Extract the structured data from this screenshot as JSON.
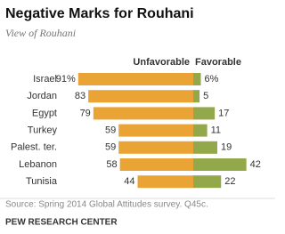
{
  "chart_data": {
    "type": "diverging-bar",
    "title": "Negative Marks for Rouhani",
    "subtitle": "View of Rouhani",
    "categories": [
      "Israel",
      "Jordan",
      "Egypt",
      "Turkey",
      "Palest. ter.",
      "Lebanon",
      "Tunisia"
    ],
    "series": [
      {
        "name": "Unfavorable",
        "color": "#e9a435",
        "values": [
          91,
          83,
          79,
          59,
          59,
          58,
          44
        ],
        "value_labels": [
          "91%",
          "83",
          "79",
          "59",
          "59",
          "58",
          "44"
        ]
      },
      {
        "name": "Favorable",
        "color": "#93a84a",
        "values": [
          6,
          5,
          17,
          11,
          19,
          42,
          22
        ],
        "value_labels": [
          "6%",
          "5",
          "17",
          "11",
          "19",
          "42",
          "22"
        ]
      }
    ],
    "source": "Source: Spring 2014 Global Attitudes survey. Q45c.",
    "footer": "PEW RESEARCH CENTER"
  }
}
